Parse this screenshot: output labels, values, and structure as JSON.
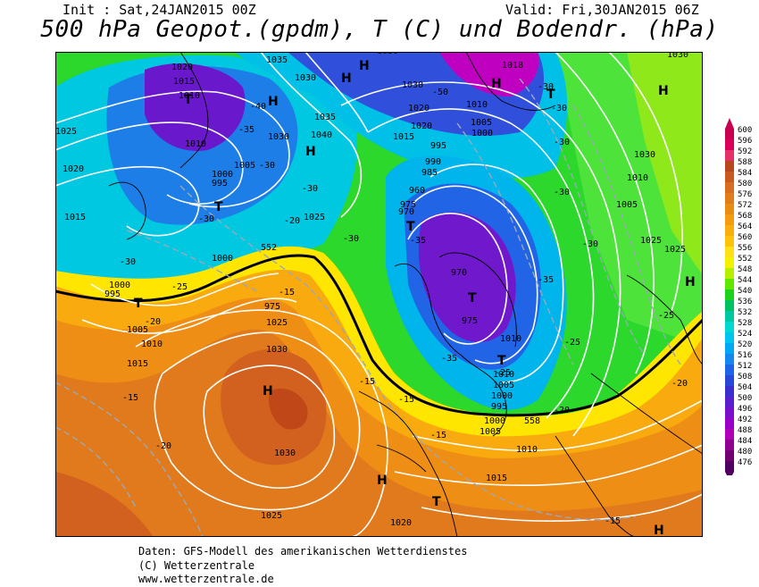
{
  "header": {
    "init": "Init : Sat,24JAN2015 00Z",
    "valid": "Valid: Fri,30JAN2015 06Z",
    "title": "500 hPa Geopot.(gpdm), T (C) und Bodendr. (hPa)"
  },
  "colorbar": {
    "labels": [
      "600",
      "596",
      "592",
      "588",
      "584",
      "580",
      "576",
      "572",
      "568",
      "564",
      "560",
      "556",
      "552",
      "548",
      "544",
      "540",
      "536",
      "532",
      "528",
      "524",
      "520",
      "516",
      "512",
      "508",
      "504",
      "500",
      "496",
      "492",
      "488",
      "484",
      "480",
      "476"
    ],
    "colors": [
      "#c8004f",
      "#d8005a",
      "#e6306a",
      "#b8471d",
      "#c85a20",
      "#d96d1f",
      "#e07d1a",
      "#ea8c14",
      "#f39c10",
      "#f8ae0c",
      "#fcc30a",
      "#ffdf15",
      "#f5ef00",
      "#b6f000",
      "#5ee800",
      "#1dd21d",
      "#00c060",
      "#00c8a0",
      "#00d8d0",
      "#00c4f0",
      "#00a8f4",
      "#1588f0",
      "#1d64e8",
      "#2848d8",
      "#3b2fd0",
      "#5a20cf",
      "#7a10cc",
      "#9a00c8",
      "#b000b8",
      "#900090",
      "#700070",
      "#500060"
    ]
  },
  "map_labels": {
    "pressure": [
      "1035",
      "1030",
      "1020",
      "1015",
      "1010",
      "1040",
      "1030",
      "1035",
      "1040",
      "1030",
      "1025",
      "1020",
      "1015",
      "1010",
      "1005",
      "1000",
      "995",
      "990",
      "985",
      "980",
      "975",
      "970",
      "960",
      "1010",
      "1005",
      "1000",
      "995",
      "990",
      "985",
      "980",
      "975",
      "970",
      "1018",
      "1025",
      "1030",
      "1025",
      "1020",
      "1015",
      "1010",
      "1005",
      "1000",
      "995",
      "1000",
      "1005",
      "1010",
      "1015",
      "1020",
      "1025",
      "1030",
      "1025",
      "1020",
      "1015",
      "1010",
      "1005",
      "1000",
      "995",
      "990",
      "985",
      "980",
      "1030",
      "1025",
      "1020",
      "1015",
      "1010",
      "1005",
      "1025",
      "1020",
      "1015"
    ],
    "temperature": [
      "-50",
      "-40",
      "-35",
      "-30",
      "-25",
      "-20",
      "-15",
      "-35",
      "-30",
      "-25",
      "-20",
      "-15",
      "-30",
      "-35",
      "-25",
      "-20",
      "-15",
      "-50",
      "-30",
      "-30",
      "-30",
      "-25",
      "-25",
      "-20",
      "-15",
      "-35",
      "-30",
      "-30",
      "-25",
      "-20",
      "-15"
    ],
    "high": "H",
    "low": "T",
    "geopot": [
      "552",
      "558"
    ]
  },
  "credits": [
    "Daten: GFS-Modell des amerikanischen Wetterdienstes",
    "(C) Wetterzentrale",
    "www.wetterzentrale.de"
  ]
}
